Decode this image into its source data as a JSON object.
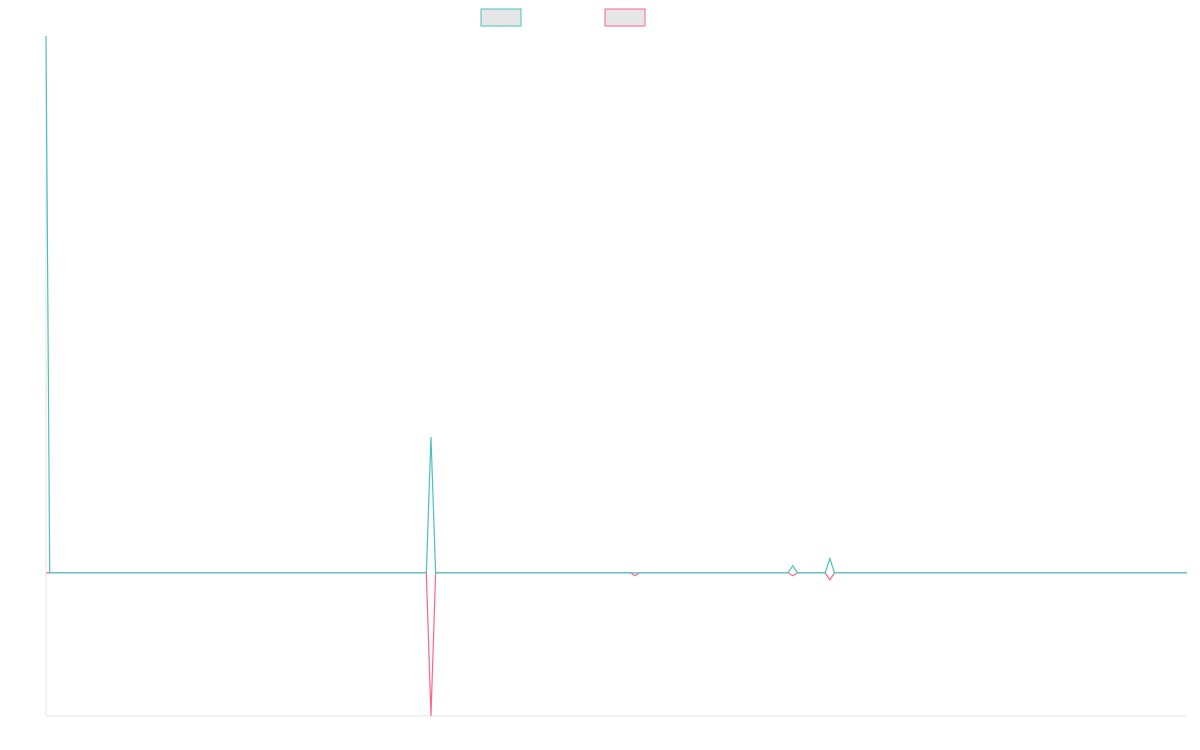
{
  "chart_data": {
    "type": "line",
    "title": "",
    "xlabel": "",
    "ylabel": "",
    "grid": false,
    "legend_position": "top-center",
    "x_count": 124,
    "ylim": [
      -1,
      3.75
    ],
    "series": [
      {
        "color": "#4bc0c0",
        "fill": "#e6e6e6",
        "points": [
          [
            0,
            3.75
          ],
          [
            0.4,
            0
          ],
          [
            41,
            0
          ],
          [
            41.5,
            0.95
          ],
          [
            42,
            0
          ],
          [
            80,
            0
          ],
          [
            80.5,
            0.05
          ],
          [
            81,
            0
          ],
          [
            84,
            0
          ],
          [
            84.5,
            0.1
          ],
          [
            85,
            0
          ],
          [
            123,
            0
          ]
        ]
      },
      {
        "color": "#ff6384",
        "fill": "#e6e6e6",
        "points": [
          [
            0,
            0
          ],
          [
            41,
            0
          ],
          [
            41.5,
            -1
          ],
          [
            42,
            0
          ],
          [
            63,
            0
          ],
          [
            63.5,
            -0.02
          ],
          [
            64,
            0
          ],
          [
            80,
            0
          ],
          [
            80.5,
            -0.02
          ],
          [
            81,
            0
          ],
          [
            84,
            0
          ],
          [
            84.5,
            -0.05
          ],
          [
            85,
            0
          ],
          [
            123,
            0
          ]
        ]
      }
    ]
  }
}
